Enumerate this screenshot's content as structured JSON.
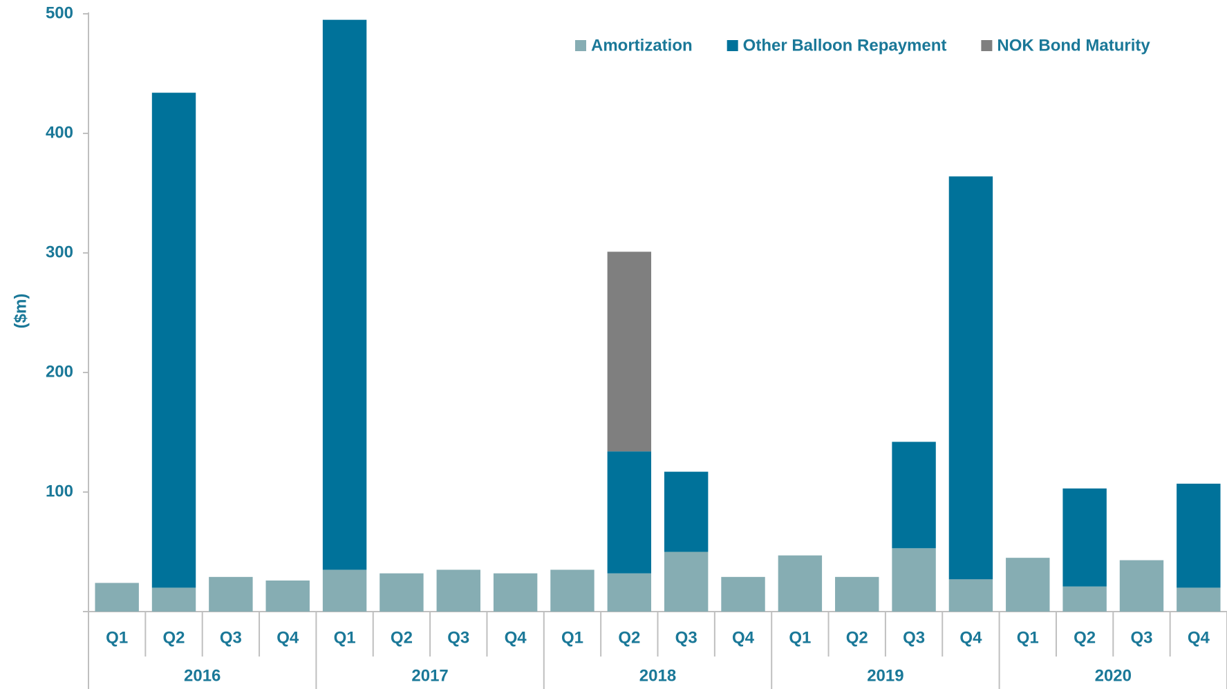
{
  "chart_data": {
    "type": "stacked_bar",
    "y_label": "($m)",
    "categories": [
      "Q1",
      "Q2",
      "Q3",
      "Q4",
      "Q1",
      "Q2",
      "Q3",
      "Q4",
      "Q1",
      "Q2",
      "Q3",
      "Q4",
      "Q1",
      "Q2",
      "Q3",
      "Q4",
      "Q1",
      "Q2",
      "Q3",
      "Q4"
    ],
    "groups": [
      "2016",
      "2017",
      "2018",
      "2019",
      "2020"
    ],
    "series": [
      {
        "name": "Amortization",
        "color": "#86adb3",
        "values": [
          24,
          20,
          29,
          26,
          35,
          32,
          35,
          32,
          35,
          32,
          50,
          29,
          47,
          29,
          53,
          27,
          45,
          21,
          43,
          20
        ]
      },
      {
        "name": "Other Balloon Repayment",
        "color": "#00729a",
        "values": [
          null,
          414,
          null,
          null,
          460,
          null,
          null,
          null,
          null,
          102,
          67,
          null,
          null,
          null,
          89,
          337,
          null,
          82,
          null,
          87
        ]
      },
      {
        "name": "NOK Bond Maturity",
        "color": "#7f7f7f",
        "values": [
          null,
          null,
          null,
          null,
          null,
          null,
          null,
          null,
          null,
          167,
          null,
          null,
          null,
          null,
          null,
          null,
          null,
          null,
          null,
          null
        ]
      }
    ],
    "ylim": [
      0,
      500
    ],
    "yticks": [
      100,
      200,
      300,
      400,
      500
    ],
    "grid": false,
    "legend": "top-right"
  }
}
